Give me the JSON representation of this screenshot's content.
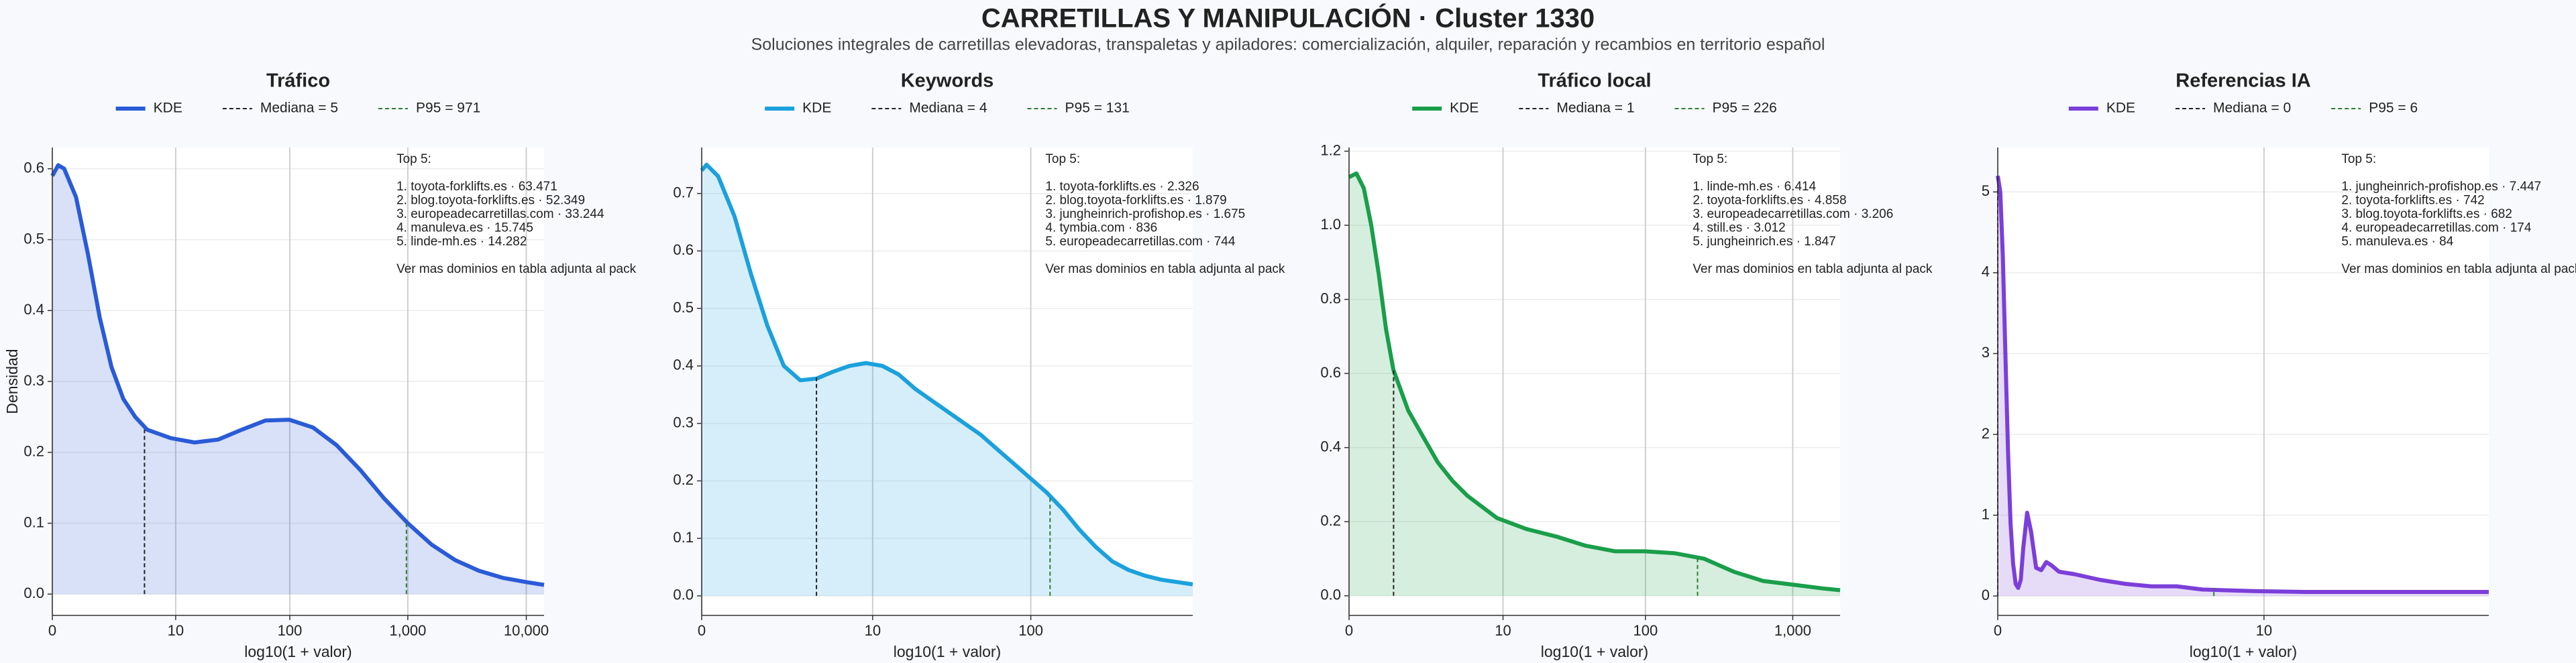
{
  "title": "CARRETILLAS Y MANIPULACIÓN · Cluster 1330",
  "subtitle": "Soluciones integrales de carretillas elevadoras, transpaletas y apiladores: comercialización, alquiler, reparación y recambios en territorio español",
  "chart_data": [
    {
      "type": "line",
      "title": "Tráfico",
      "y_label": "Densidad",
      "x_label": "log10(1 + valor)",
      "xlim": [
        0,
        4.15
      ],
      "xticks": [
        0,
        {
          "value": 1.041,
          "label": "10"
        },
        {
          "value": 2.004,
          "label": "100"
        },
        {
          "value": 3.0,
          "label": "1,000"
        },
        {
          "value": 4.0,
          "label": "10,000"
        }
      ],
      "ylim": [
        -0.03,
        0.63
      ],
      "yticks": [
        {
          "value": 0,
          "label": "0.0"
        },
        0.1,
        0.2,
        0.3,
        0.4,
        0.5,
        0.6
      ],
      "grid": true,
      "series": [
        {
          "name": "KDE",
          "color": "#2a5bd7",
          "fill": true,
          "x": [
            0,
            0.05,
            0.1,
            0.2,
            0.3,
            0.4,
            0.5,
            0.6,
            0.7,
            0.8,
            1.0,
            1.2,
            1.4,
            1.6,
            1.8,
            2.0,
            2.2,
            2.4,
            2.6,
            2.8,
            3.0,
            3.2,
            3.4,
            3.6,
            3.8,
            4.0,
            4.15
          ],
          "values": [
            0.59,
            0.605,
            0.6,
            0.56,
            0.48,
            0.39,
            0.32,
            0.275,
            0.25,
            0.232,
            0.22,
            0.214,
            0.218,
            0.232,
            0.245,
            0.246,
            0.235,
            0.21,
            0.175,
            0.135,
            0.1,
            0.07,
            0.048,
            0.033,
            0.023,
            0.017,
            0.013
          ]
        },
        {
          "name": "Mediana = 5",
          "color": "#222222",
          "style": "dashed",
          "x": [
            0.778,
            0.778
          ],
          "values": [
            0,
            0.232
          ]
        },
        {
          "name": "P95 = 971",
          "color": "#2e7d32",
          "style": "dashed",
          "x": [
            2.988,
            2.988
          ],
          "values": [
            0,
            0.1
          ]
        }
      ],
      "annotation_title": "Top 5:",
      "annotation_lines": [
        "1. toyota-forklifts.es · 63.471",
        "2. blog.toyota-forklifts.es · 52.349",
        "3. europeadecarretillas.com · 33.244",
        "4. manuleva.es · 15.745",
        "5. linde-mh.es · 14.282"
      ],
      "annotation_note": "Ver mas dominios en tabla adjunta al pack"
    },
    {
      "type": "line",
      "title": "Keywords",
      "x_label": "log10(1 + valor)",
      "xlim": [
        0,
        2.99
      ],
      "xticks": [
        0,
        {
          "value": 1.041,
          "label": "10"
        },
        {
          "value": 2.004,
          "label": "100"
        }
      ],
      "ylim": [
        -0.034,
        0.78
      ],
      "yticks": [
        {
          "value": 0,
          "label": "0.0"
        },
        0.1,
        0.2,
        0.3,
        0.4,
        0.5,
        0.6,
        0.7
      ],
      "grid": true,
      "series": [
        {
          "name": "KDE",
          "color": "#1ba1dc",
          "fill": true,
          "x": [
            0,
            0.03,
            0.1,
            0.2,
            0.3,
            0.4,
            0.5,
            0.6,
            0.7,
            0.8,
            0.9,
            1.0,
            1.1,
            1.2,
            1.3,
            1.4,
            1.5,
            1.6,
            1.7,
            1.8,
            1.9,
            2.0,
            2.1,
            2.2,
            2.3,
            2.4,
            2.5,
            2.6,
            2.7,
            2.8,
            2.99
          ],
          "values": [
            0.74,
            0.75,
            0.73,
            0.66,
            0.56,
            0.47,
            0.4,
            0.375,
            0.378,
            0.39,
            0.4,
            0.405,
            0.4,
            0.385,
            0.36,
            0.34,
            0.32,
            0.3,
            0.28,
            0.255,
            0.23,
            0.205,
            0.18,
            0.15,
            0.115,
            0.085,
            0.06,
            0.045,
            0.035,
            0.028,
            0.02
          ]
        },
        {
          "name": "Mediana = 4",
          "color": "#222222",
          "style": "dashed",
          "x": [
            0.699,
            0.699
          ],
          "values": [
            0,
            0.38
          ]
        },
        {
          "name": "P95 = 131",
          "color": "#2e7d32",
          "style": "dashed",
          "x": [
            2.121,
            2.121
          ],
          "values": [
            0,
            0.17
          ]
        }
      ],
      "annotation_title": "Top 5:",
      "annotation_lines": [
        "1. toyota-forklifts.es · 2.326",
        "2. blog.toyota-forklifts.es · 1.879",
        "3. jungheinrich-profishop.es · 1.675",
        "4. tymbia.com · 836",
        "5. europeadecarretillas.com · 744"
      ],
      "annotation_note": "Ver mas dominios en tabla adjunta al pack"
    },
    {
      "type": "line",
      "title": "Tráfico local",
      "x_label": "log10(1 + valor)",
      "xlim": [
        0,
        3.32
      ],
      "xticks": [
        0,
        {
          "value": 1.041,
          "label": "10"
        },
        {
          "value": 2.004,
          "label": "100"
        },
        {
          "value": 3.0,
          "label": "1,000"
        }
      ],
      "ylim": [
        -0.053,
        1.21
      ],
      "yticks": [
        {
          "value": 0,
          "label": "0.0"
        },
        0.2,
        0.4,
        0.6,
        0.8,
        {
          "value": 1,
          "label": "1.0"
        },
        1.2
      ],
      "grid": true,
      "series": [
        {
          "name": "KDE",
          "color": "#1a9e4a",
          "fill": true,
          "x": [
            0,
            0.05,
            0.1,
            0.15,
            0.2,
            0.25,
            0.3,
            0.4,
            0.5,
            0.6,
            0.7,
            0.8,
            0.9,
            1.0,
            1.2,
            1.4,
            1.6,
            1.8,
            2.0,
            2.2,
            2.4,
            2.6,
            2.8,
            3.0,
            3.2,
            3.32
          ],
          "values": [
            1.13,
            1.14,
            1.1,
            1.0,
            0.87,
            0.72,
            0.61,
            0.5,
            0.43,
            0.36,
            0.31,
            0.27,
            0.24,
            0.21,
            0.18,
            0.16,
            0.135,
            0.12,
            0.12,
            0.115,
            0.1,
            0.065,
            0.04,
            0.03,
            0.02,
            0.015
          ]
        },
        {
          "name": "Mediana = 1",
          "color": "#222222",
          "style": "dashed",
          "x": [
            0.301,
            0.301
          ],
          "values": [
            0,
            0.61
          ]
        },
        {
          "name": "P95 = 226",
          "color": "#2e7d32",
          "style": "dashed",
          "x": [
            2.356,
            2.356
          ],
          "values": [
            0,
            0.1
          ]
        }
      ],
      "annotation_title": "Top 5:",
      "annotation_lines": [
        "1. linde-mh.es · 6.414",
        "2. toyota-forklifts.es · 4.858",
        "3. europeadecarretillas.com · 3.206",
        "4. still.es · 3.012",
        "5. jungheinrich.es · 1.847"
      ],
      "annotation_note": "Ver mas dominios en tabla adjunta al pack"
    },
    {
      "type": "line",
      "title": "Referencias IA",
      "x_label": "log10(1 + valor)",
      "xlim": [
        0,
        1.92
      ],
      "xticks": [
        0,
        {
          "value": 1.041,
          "label": "10"
        }
      ],
      "ylim": [
        -0.24,
        5.55
      ],
      "yticks": [
        0,
        1,
        2,
        3,
        4,
        5
      ],
      "grid": true,
      "series": [
        {
          "name": "KDE",
          "color": "#7b3fd9",
          "fill": true,
          "x": [
            0,
            0.01,
            0.02,
            0.03,
            0.04,
            0.05,
            0.06,
            0.07,
            0.08,
            0.09,
            0.1,
            0.115,
            0.13,
            0.15,
            0.17,
            0.19,
            0.21,
            0.24,
            0.3,
            0.4,
            0.5,
            0.6,
            0.7,
            0.8,
            1.0,
            1.2,
            1.5,
            1.92
          ],
          "values": [
            5.2,
            5.0,
            4.2,
            3.0,
            1.8,
            0.9,
            0.4,
            0.15,
            0.1,
            0.2,
            0.6,
            1.03,
            0.8,
            0.35,
            0.32,
            0.42,
            0.38,
            0.3,
            0.27,
            0.2,
            0.15,
            0.12,
            0.12,
            0.08,
            0.06,
            0.05,
            0.05,
            0.05
          ]
        },
        {
          "name": "Mediana = 0",
          "color": "#222222",
          "style": "dashed",
          "x": [
            0,
            0
          ],
          "values": [
            0,
            5.2
          ]
        },
        {
          "name": "P95 = 6",
          "color": "#2e7d32",
          "style": "dashed",
          "x": [
            0.845,
            0.845
          ],
          "values": [
            0,
            0.1
          ]
        }
      ],
      "annotation_title": "Top 5:",
      "annotation_lines": [
        "1. jungheinrich-profishop.es · 7.447",
        "2. toyota-forklifts.es · 742",
        "3. blog.toyota-forklifts.es · 682",
        "4. europeadecarretillas.com · 174",
        "5. manuleva.es · 84"
      ],
      "annotation_note": "Ver mas dominios en tabla adjunta al pack"
    }
  ]
}
